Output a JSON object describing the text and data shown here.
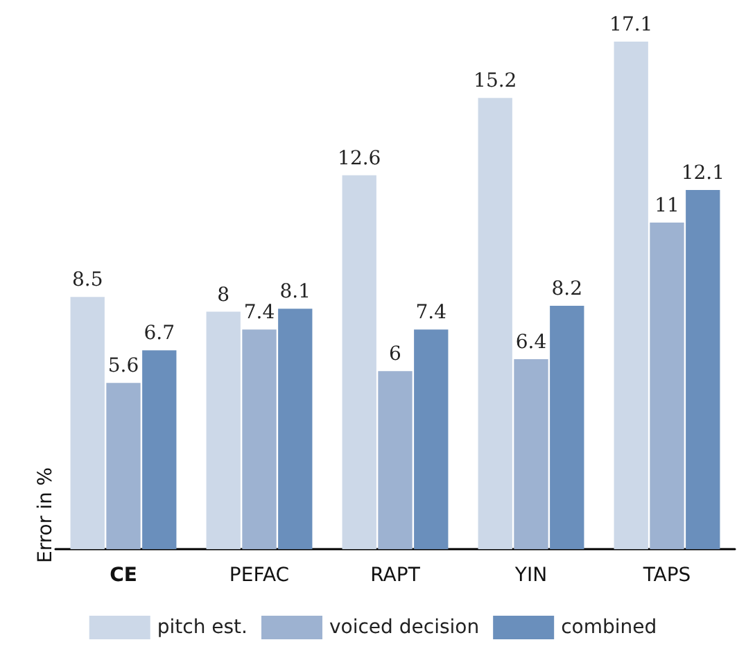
{
  "chart_data": {
    "type": "bar",
    "ylabel": "Error in %",
    "categories": [
      "CE",
      "PEFAC",
      "RAPT",
      "YIN",
      "TAPS"
    ],
    "series": [
      {
        "name": "pitch est.",
        "color": "#ccd8e8",
        "values": [
          8.5,
          8,
          12.6,
          15.2,
          17.1
        ]
      },
      {
        "name": "voiced decision",
        "color": "#9db2d1",
        "values": [
          5.6,
          7.4,
          6,
          6.4,
          11
        ]
      },
      {
        "name": "combined",
        "color": "#6a8fbc",
        "values": [
          6.7,
          8.1,
          7.4,
          8.2,
          12.1
        ]
      }
    ],
    "data_labels": true,
    "grid": false,
    "legend": "bottom",
    "tick_labels": "x"
  }
}
